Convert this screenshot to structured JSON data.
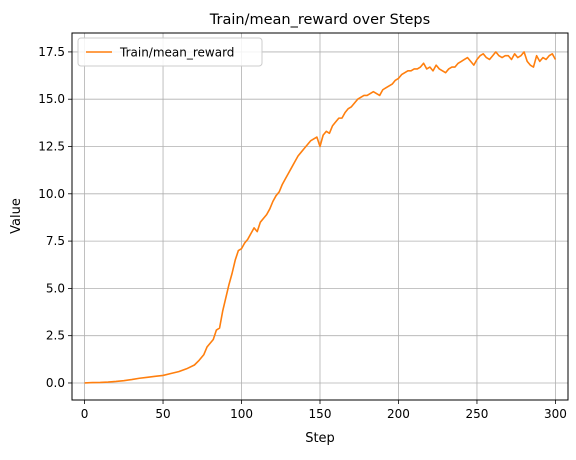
{
  "chart_data": {
    "type": "line",
    "title": "Train/mean_reward over Steps",
    "xlabel": "Step",
    "ylabel": "Value",
    "xlim": [
      -8,
      308
    ],
    "ylim": [
      -0.9,
      18.5
    ],
    "xticks": [
      0,
      50,
      100,
      150,
      200,
      250,
      300
    ],
    "xtick_labels": [
      "0",
      "50",
      "100",
      "150",
      "200",
      "250",
      "300"
    ],
    "yticks": [
      0,
      2.5,
      5,
      7.5,
      10,
      12.5,
      15,
      17.5
    ],
    "ytick_labels": [
      "0.0",
      "2.5",
      "5.0",
      "7.5",
      "10.0",
      "12.5",
      "15.0",
      "17.5"
    ],
    "grid": true,
    "legend_position": "top-left",
    "series": [
      {
        "name": "Train/mean_reward",
        "color": "#ff7f0e",
        "x": [
          0,
          5,
          10,
          15,
          20,
          25,
          30,
          35,
          40,
          45,
          50,
          55,
          60,
          65,
          70,
          73,
          76,
          78,
          80,
          82,
          84,
          86,
          88,
          90,
          92,
          94,
          96,
          98,
          100,
          102,
          104,
          106,
          108,
          110,
          112,
          114,
          116,
          118,
          120,
          122,
          124,
          126,
          128,
          130,
          132,
          134,
          136,
          138,
          140,
          142,
          144,
          146,
          148,
          150,
          152,
          154,
          156,
          158,
          160,
          162,
          164,
          166,
          168,
          170,
          172,
          174,
          176,
          178,
          180,
          182,
          184,
          186,
          188,
          190,
          192,
          194,
          196,
          198,
          200,
          202,
          204,
          206,
          208,
          210,
          212,
          214,
          216,
          218,
          220,
          222,
          224,
          226,
          228,
          230,
          232,
          234,
          236,
          238,
          240,
          242,
          244,
          246,
          248,
          250,
          252,
          254,
          256,
          258,
          260,
          262,
          264,
          266,
          268,
          270,
          272,
          274,
          276,
          278,
          280,
          282,
          284,
          286,
          288,
          290,
          292,
          294,
          296,
          298,
          300
        ],
        "y": [
          0.0,
          0.02,
          0.03,
          0.05,
          0.08,
          0.12,
          0.18,
          0.25,
          0.3,
          0.35,
          0.4,
          0.5,
          0.6,
          0.75,
          0.95,
          1.2,
          1.5,
          1.9,
          2.1,
          2.3,
          2.8,
          2.9,
          3.8,
          4.5,
          5.2,
          5.8,
          6.5,
          7.0,
          7.1,
          7.4,
          7.6,
          7.9,
          8.2,
          8.0,
          8.5,
          8.7,
          8.9,
          9.2,
          9.6,
          9.9,
          10.1,
          10.5,
          10.8,
          11.1,
          11.4,
          11.7,
          12.0,
          12.2,
          12.4,
          12.6,
          12.8,
          12.9,
          13.0,
          12.5,
          13.1,
          13.3,
          13.2,
          13.6,
          13.8,
          14.0,
          14.0,
          14.3,
          14.5,
          14.6,
          14.8,
          15.0,
          15.1,
          15.2,
          15.2,
          15.3,
          15.4,
          15.3,
          15.2,
          15.5,
          15.6,
          15.7,
          15.8,
          16.0,
          16.1,
          16.3,
          16.4,
          16.5,
          16.5,
          16.6,
          16.6,
          16.7,
          16.9,
          16.6,
          16.7,
          16.5,
          16.8,
          16.6,
          16.5,
          16.4,
          16.6,
          16.7,
          16.7,
          16.9,
          17.0,
          17.1,
          17.2,
          17.0,
          16.8,
          17.1,
          17.3,
          17.4,
          17.2,
          17.1,
          17.3,
          17.5,
          17.3,
          17.2,
          17.3,
          17.3,
          17.1,
          17.4,
          17.2,
          17.3,
          17.5,
          17.0,
          16.8,
          16.7,
          17.3,
          17.0,
          17.2,
          17.1,
          17.3,
          17.4,
          17.1
        ]
      }
    ]
  }
}
